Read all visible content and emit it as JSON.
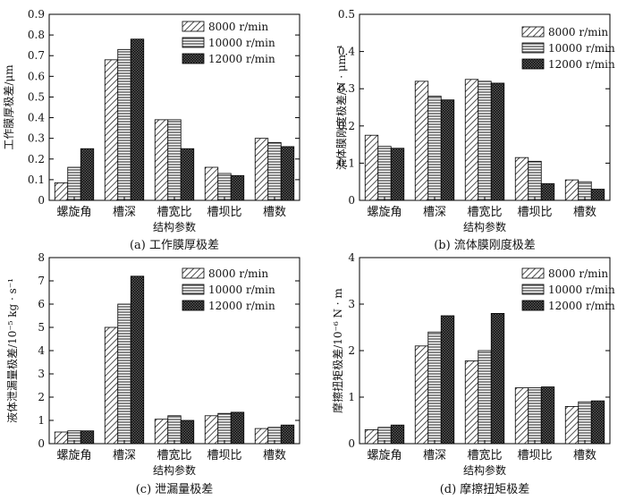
{
  "chart_data": [
    {
      "type": "bar",
      "caption": "(a) 工作膜厚极差",
      "xlabel": "结构参数",
      "ylabel": "工作膜厚极差/μm",
      "categories": [
        "螺旋角",
        "槽深",
        "槽宽比",
        "槽坝比",
        "槽数"
      ],
      "ylim": [
        0,
        0.9
      ],
      "yticks": [
        "0",
        "0.1",
        "0.2",
        "0.3",
        "0.4",
        "0.5",
        "0.6",
        "0.7",
        "0.8",
        "0.9"
      ],
      "series": [
        {
          "name": "8000 r/min",
          "values": [
            0.085,
            0.68,
            0.39,
            0.16,
            0.3
          ]
        },
        {
          "name": "10000 r/min",
          "values": [
            0.16,
            0.73,
            0.39,
            0.13,
            0.28
          ]
        },
        {
          "name": "12000 r/min",
          "values": [
            0.25,
            0.78,
            0.25,
            0.12,
            0.26
          ]
        }
      ]
    },
    {
      "type": "bar",
      "caption": "(b) 流体膜刚度极差",
      "xlabel": "结构参数",
      "ylabel": "流体膜刚度极差/N · μm⁻¹",
      "categories": [
        "螺旋角",
        "槽深",
        "槽宽比",
        "槽坝比",
        "槽数"
      ],
      "ylim": [
        0,
        0.5
      ],
      "yticks": [
        "0",
        "0.1",
        "0.2",
        "0.3",
        "0.4",
        "0.5"
      ],
      "series": [
        {
          "name": "8000 r/min",
          "values": [
            0.175,
            0.32,
            0.325,
            0.115,
            0.055
          ]
        },
        {
          "name": "10000 r/min",
          "values": [
            0.145,
            0.28,
            0.32,
            0.105,
            0.05
          ]
        },
        {
          "name": "12000 r/min",
          "values": [
            0.14,
            0.27,
            0.315,
            0.045,
            0.03
          ]
        }
      ]
    },
    {
      "type": "bar",
      "caption": "(c) 泄漏量极差",
      "xlabel": "结构参数",
      "ylabel": "液体泄漏量极差/10⁻⁵ kg · s⁻¹",
      "categories": [
        "螺旋角",
        "槽深",
        "槽宽比",
        "槽坝比",
        "槽数"
      ],
      "ylim": [
        0,
        8
      ],
      "yticks": [
        "0",
        "1",
        "2",
        "3",
        "4",
        "5",
        "6",
        "7",
        "8"
      ],
      "series": [
        {
          "name": "8000 r/min",
          "values": [
            0.5,
            5.0,
            1.05,
            1.2,
            0.65
          ]
        },
        {
          "name": "10000 r/min",
          "values": [
            0.55,
            6.0,
            1.2,
            1.3,
            0.7
          ]
        },
        {
          "name": "12000 r/min",
          "values": [
            0.55,
            7.2,
            1.0,
            1.35,
            0.8
          ]
        }
      ]
    },
    {
      "type": "bar",
      "caption": "(d) 摩擦扭矩极差",
      "xlabel": "结构参数",
      "ylabel": "摩擦扭矩极差/10⁻⁶ N · m",
      "categories": [
        "螺旋角",
        "槽深",
        "槽宽比",
        "槽坝比",
        "槽数"
      ],
      "ylim": [
        0,
        4
      ],
      "yticks": [
        "0",
        "1",
        "2",
        "3",
        "4"
      ],
      "series": [
        {
          "name": "8000 r/min",
          "values": [
            0.3,
            2.1,
            1.78,
            1.2,
            0.8
          ]
        },
        {
          "name": "10000 r/min",
          "values": [
            0.35,
            2.4,
            2.0,
            1.2,
            0.9
          ]
        },
        {
          "name": "12000 r/min",
          "values": [
            0.4,
            2.75,
            2.8,
            1.22,
            0.92
          ]
        }
      ]
    }
  ]
}
